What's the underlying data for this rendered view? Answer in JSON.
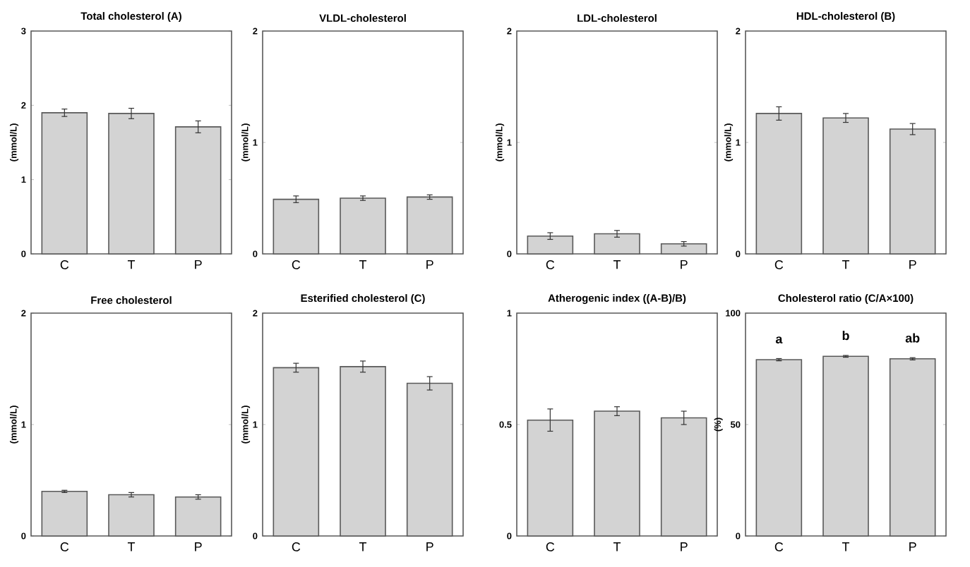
{
  "chart_data": [
    {
      "type": "bar",
      "title": "Total cholesterol (A)",
      "ylabel": "(mmol/L)",
      "categories": [
        "C",
        "T",
        "P"
      ],
      "values": [
        1.9,
        1.89,
        1.71
      ],
      "errors": [
        0.05,
        0.07,
        0.08
      ],
      "color": "#d3d3d3",
      "ylim": [
        0,
        3
      ],
      "yticks": [
        0,
        1,
        2,
        3
      ]
    },
    {
      "type": "bar",
      "title": "VLDL-cholesterol",
      "ylabel": "(mmol/L)",
      "categories": [
        "C",
        "T",
        "P"
      ],
      "values": [
        0.49,
        0.5,
        0.51
      ],
      "errors": [
        0.03,
        0.02,
        0.02
      ],
      "color": "#d3d3d3",
      "ylim": [
        0,
        2
      ],
      "yticks": [
        0,
        1,
        2
      ]
    },
    {
      "type": "bar",
      "title": "LDL-cholesterol",
      "ylabel": "(mmol/L)",
      "categories": [
        "C",
        "T",
        "P"
      ],
      "values": [
        0.16,
        0.18,
        0.09
      ],
      "errors": [
        0.03,
        0.03,
        0.02
      ],
      "color": "#d3d3d3",
      "ylim": [
        0,
        2
      ],
      "yticks": [
        0,
        1,
        2
      ]
    },
    {
      "type": "bar",
      "title": "HDL-cholesterol  (B)",
      "ylabel": "(mmol/L)",
      "categories": [
        "C",
        "T",
        "P"
      ],
      "values": [
        1.26,
        1.22,
        1.12
      ],
      "errors": [
        0.06,
        0.04,
        0.05
      ],
      "color": "#d3d3d3",
      "ylim": [
        0,
        2
      ],
      "yticks": [
        0,
        1,
        2
      ]
    },
    {
      "type": "bar",
      "title": "Free cholesterol",
      "ylabel": "(mmol/L)",
      "categories": [
        "C",
        "T",
        "P"
      ],
      "values": [
        0.4,
        0.37,
        0.35
      ],
      "errors": [
        0.01,
        0.02,
        0.02
      ],
      "color": "#d3d3d3",
      "ylim": [
        0,
        2
      ],
      "yticks": [
        0,
        1,
        2
      ]
    },
    {
      "type": "bar",
      "title": "Esterified cholesterol (C)",
      "ylabel": "(mmol/L)",
      "categories": [
        "C",
        "T",
        "P"
      ],
      "values": [
        1.51,
        1.52,
        1.37
      ],
      "errors": [
        0.04,
        0.05,
        0.06
      ],
      "color": "#d3d3d3",
      "ylim": [
        0,
        2
      ],
      "yticks": [
        0,
        1,
        2
      ]
    },
    {
      "type": "bar",
      "title": "Atherogenic index ((A-B)/B)",
      "categories": [
        "C",
        "T",
        "P"
      ],
      "values": [
        0.52,
        0.56,
        0.53
      ],
      "errors": [
        0.05,
        0.02,
        0.03
      ],
      "color": "#d3d3d3",
      "ylim": [
        0,
        1
      ],
      "yticks": [
        0,
        0.5,
        1
      ]
    },
    {
      "type": "bar",
      "title": "Cholesterol ratio (C/A×100)",
      "ylabel": "(%)",
      "categories": [
        "C",
        "T",
        "P"
      ],
      "values": [
        79.1,
        80.6,
        79.5
      ],
      "errors": [
        0.5,
        0.4,
        0.5
      ],
      "color": "#d3d3d3",
      "ylim": [
        0,
        100
      ],
      "yticks": [
        0,
        50,
        100
      ],
      "annotations": [
        "a",
        "b",
        "ab"
      ]
    }
  ]
}
